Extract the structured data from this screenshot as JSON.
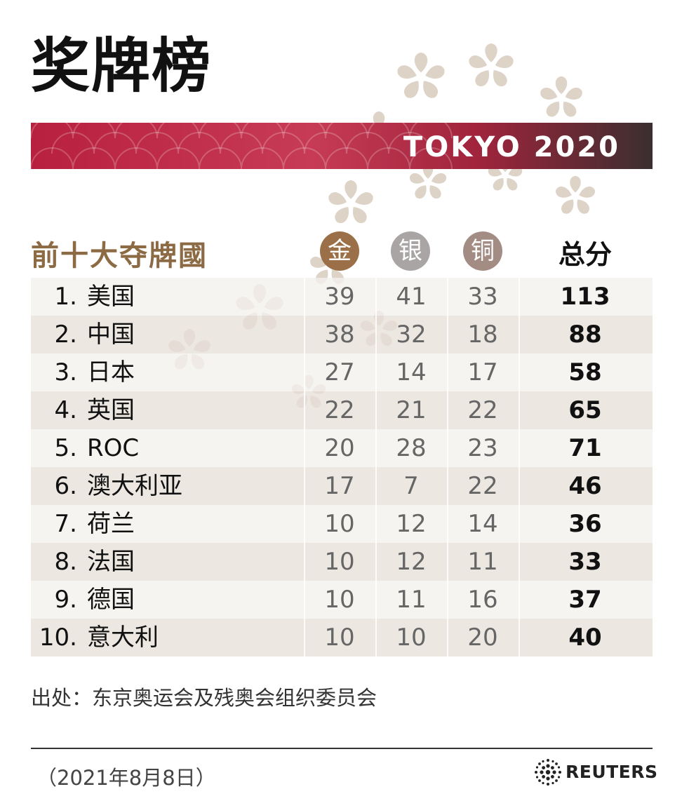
{
  "title": "奖牌榜",
  "banner": "TOKYO 2020",
  "subtitle": "前十大夺牌國",
  "headers": {
    "gold": "金",
    "silver": "银",
    "bronze": "铜",
    "total": "总分"
  },
  "colors": {
    "gold": "#9b7048",
    "silver": "#a9a5a5",
    "bronze": "#a38c83",
    "banner_red": "#b8203f",
    "subtitle": "#8b6a44"
  },
  "chart_data": {
    "type": "table",
    "columns": [
      "",
      "金",
      "银",
      "铜",
      "总分"
    ],
    "rows": [
      {
        "rank": "1.",
        "country": "美国",
        "gold": "39",
        "silver": "41",
        "bronze": "33",
        "total": "113"
      },
      {
        "rank": "2.",
        "country": "中国",
        "gold": "38",
        "silver": "32",
        "bronze": "18",
        "total": "88"
      },
      {
        "rank": "3.",
        "country": "日本",
        "gold": "27",
        "silver": "14",
        "bronze": "17",
        "total": "58"
      },
      {
        "rank": "4.",
        "country": "英国",
        "gold": "22",
        "silver": "21",
        "bronze": "22",
        "total": "65"
      },
      {
        "rank": "5.",
        "country": "ROC",
        "gold": "20",
        "silver": "28",
        "bronze": "23",
        "total": "71"
      },
      {
        "rank": "6.",
        "country": "澳大利亚",
        "gold": "17",
        "silver": "7",
        "bronze": "22",
        "total": "46"
      },
      {
        "rank": "7.",
        "country": "荷兰",
        "gold": "10",
        "silver": "12",
        "bronze": "14",
        "total": "36"
      },
      {
        "rank": "8.",
        "country": "法国",
        "gold": "10",
        "silver": "12",
        "bronze": "11",
        "total": "33"
      },
      {
        "rank": "9.",
        "country": "德国",
        "gold": "10",
        "silver": "11",
        "bronze": "16",
        "total": "37"
      },
      {
        "rank": "10.",
        "country": "意大利",
        "gold": "10",
        "silver": "10",
        "bronze": "20",
        "total": "40"
      }
    ]
  },
  "source": "出处：东京奥运会及残奥会组织委员会",
  "date": "（2021年8月8日）",
  "brand": "REUTERS",
  "icons": {
    "logo": "reuters-dot-logo-icon",
    "decoration": "cherry-blossom-icon"
  }
}
